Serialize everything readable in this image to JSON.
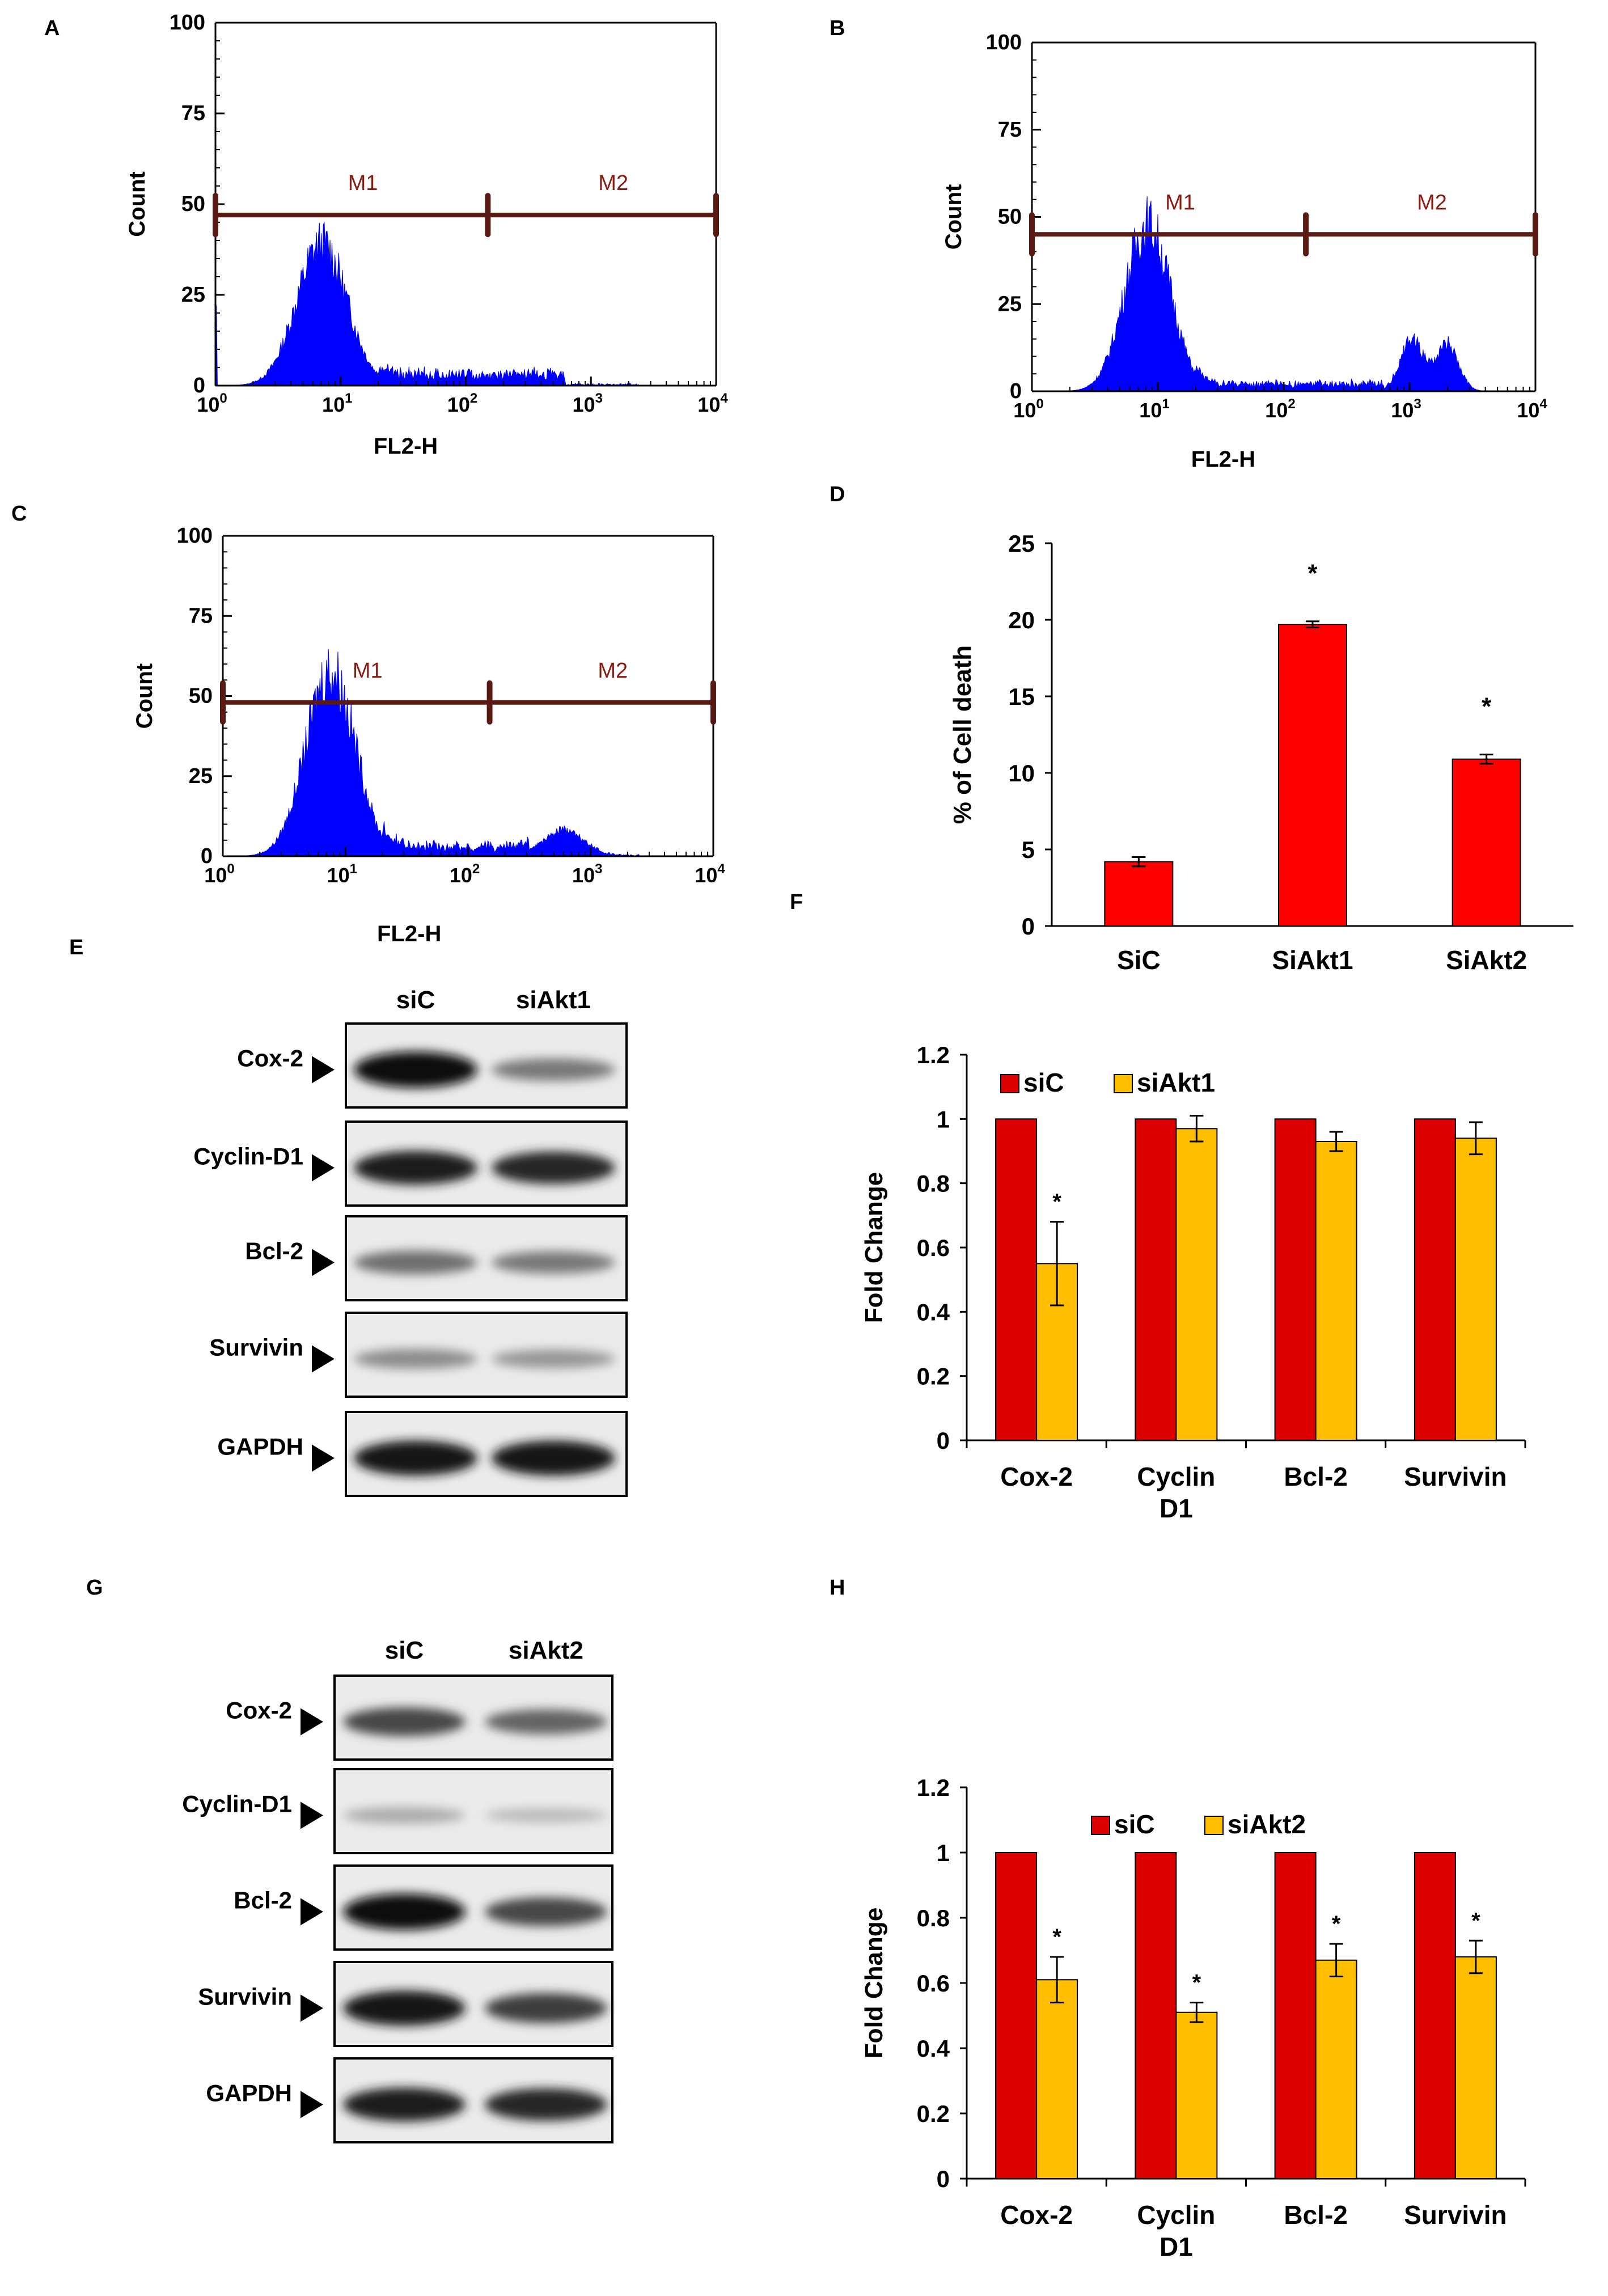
{
  "panels": {
    "A": "A",
    "B": "B",
    "C": "C",
    "D": "D",
    "E": "E",
    "F": "F",
    "G": "G",
    "H": "H"
  },
  "colors": {
    "histogram": "#0000ff",
    "marker": "#5a1a14",
    "siC": "#dd0000",
    "siAkt": "#ffbf00",
    "barD": "#ff0000"
  },
  "chart_data": [
    {
      "id": "A",
      "type": "area",
      "title": "",
      "xlabel": "FL2-H",
      "ylabel": "Count",
      "xscale": "log",
      "xlim": [
        1,
        10000
      ],
      "ylim": [
        0,
        100
      ],
      "yticks": [
        "0",
        "25",
        "50",
        "75",
        "100"
      ],
      "xticks_base": [
        "10",
        "10",
        "10",
        "10",
        "10"
      ],
      "xticks_exp": [
        "0",
        "1",
        "2",
        "3",
        "4"
      ],
      "markers": [
        {
          "label": "M1",
          "from": 1,
          "to": 150
        },
        {
          "label": "M2",
          "from": 150,
          "to": 10000
        }
      ],
      "marker_level": 47,
      "peaks": [
        {
          "log_center": 0.85,
          "height": 39,
          "width": 0.2
        }
      ],
      "tail": {
        "start": 1.3,
        "end": 2.8,
        "level": 3
      },
      "edge_spike": 25
    },
    {
      "id": "B",
      "type": "area",
      "title": "",
      "xlabel": "FL2-H",
      "ylabel": "Count",
      "xscale": "log",
      "xlim": [
        1,
        10000
      ],
      "ylim": [
        0,
        100
      ],
      "yticks": [
        "0",
        "25",
        "50",
        "75",
        "100"
      ],
      "xticks_base": [
        "10",
        "10",
        "10",
        "10",
        "10"
      ],
      "xticks_exp": [
        "0",
        "1",
        "2",
        "3",
        "4"
      ],
      "markers": [
        {
          "label": "M1",
          "from": 1,
          "to": 150
        },
        {
          "label": "M2",
          "from": 150,
          "to": 10000
        }
      ],
      "marker_level": 45,
      "peaks": [
        {
          "log_center": 0.92,
          "height": 48,
          "width": 0.18
        },
        {
          "log_center": 3.02,
          "height": 15,
          "width": 0.09
        },
        {
          "log_center": 3.3,
          "height": 13,
          "width": 0.09
        }
      ],
      "tail": {
        "start": 1.3,
        "end": 2.8,
        "level": 2
      },
      "edge_spike": 0
    },
    {
      "id": "C",
      "type": "area",
      "title": "",
      "xlabel": "FL2-H",
      "ylabel": "Count",
      "xscale": "log",
      "xlim": [
        1,
        10000
      ],
      "ylim": [
        0,
        100
      ],
      "yticks": [
        "0",
        "25",
        "50",
        "75",
        "100"
      ],
      "xticks_base": [
        "10",
        "10",
        "10",
        "10",
        "10"
      ],
      "xticks_exp": [
        "0",
        "1",
        "2",
        "3",
        "4"
      ],
      "markers": [
        {
          "label": "M1",
          "from": 1,
          "to": 150
        },
        {
          "label": "M2",
          "from": 150,
          "to": 10000
        }
      ],
      "marker_level": 48,
      "peaks": [
        {
          "log_center": 0.88,
          "height": 58,
          "width": 0.2
        },
        {
          "log_center": 2.78,
          "height": 8,
          "width": 0.16
        }
      ],
      "tail": {
        "start": 1.3,
        "end": 2.5,
        "level": 3
      },
      "edge_spike": 0
    },
    {
      "id": "D",
      "type": "bar",
      "title": "",
      "xlabel": "",
      "ylabel": "% of Cell death",
      "categories": [
        "SiC",
        "SiAkt1",
        "SiAkt2"
      ],
      "values": [
        4.2,
        19.7,
        10.9
      ],
      "errors": [
        0.3,
        0.2,
        0.3
      ],
      "significance": [
        "",
        "*",
        "*"
      ],
      "ylim": [
        0,
        25
      ],
      "yticks": [
        "0",
        "5",
        "10",
        "15",
        "20",
        "25"
      ]
    },
    {
      "id": "F",
      "type": "bar",
      "title": "",
      "xlabel": "",
      "ylabel": "Fold Change",
      "categories": [
        "Cox-2",
        "Cyclin\nD1",
        "Bcl-2",
        "Survivin"
      ],
      "category_lines": [
        [
          "Cox-2"
        ],
        [
          "Cyclin",
          "D1"
        ],
        [
          "Bcl-2"
        ],
        [
          "Survivin"
        ]
      ],
      "series": [
        {
          "name": "siC",
          "values": [
            1,
            1,
            1,
            1
          ],
          "errors": [
            0,
            0,
            0,
            0
          ]
        },
        {
          "name": "siAkt1",
          "values": [
            0.55,
            0.97,
            0.93,
            0.94
          ],
          "errors": [
            0.13,
            0.04,
            0.03,
            0.05
          ]
        }
      ],
      "significance": [
        "*",
        "",
        "",
        ""
      ],
      "ylim": [
        0,
        1.2
      ],
      "yticks": [
        "0",
        "0.2",
        "0.4",
        "0.6",
        "0.8",
        "1",
        "1.2"
      ],
      "legend": "top-left"
    },
    {
      "id": "H",
      "type": "bar",
      "title": "",
      "xlabel": "",
      "ylabel": "Fold Change",
      "categories": [
        "Cox-2",
        "Cyclin\nD1",
        "Bcl-2",
        "Survivin"
      ],
      "category_lines": [
        [
          "Cox-2"
        ],
        [
          "Cyclin",
          "D1"
        ],
        [
          "Bcl-2"
        ],
        [
          "Survivin"
        ]
      ],
      "series": [
        {
          "name": "siC",
          "values": [
            1,
            1,
            1,
            1
          ],
          "errors": [
            0,
            0,
            0,
            0
          ]
        },
        {
          "name": "siAkt2",
          "values": [
            0.61,
            0.51,
            0.67,
            0.68
          ],
          "errors": [
            0.07,
            0.03,
            0.05,
            0.05
          ]
        }
      ],
      "significance": [
        "*",
        "*",
        "*",
        "*"
      ],
      "ylim": [
        0,
        1.2
      ],
      "yticks": [
        "0",
        "0.2",
        "0.4",
        "0.6",
        "0.8",
        "1",
        "1.2"
      ],
      "legend": "top-center"
    }
  ],
  "blots": {
    "E": {
      "lanes": [
        "siC",
        "siAkt1"
      ],
      "rows": [
        {
          "label": "Cox-2",
          "intensity": [
            1.0,
            0.45
          ]
        },
        {
          "label": "Cyclin-D1",
          "intensity": [
            0.9,
            0.85
          ]
        },
        {
          "label": "Bcl-2",
          "intensity": [
            0.5,
            0.45
          ]
        },
        {
          "label": "Survivin",
          "intensity": [
            0.35,
            0.3
          ]
        },
        {
          "label": "GAPDH",
          "intensity": [
            0.95,
            0.95
          ]
        }
      ]
    },
    "G": {
      "lanes": [
        "siC",
        "siAkt2"
      ],
      "rows": [
        {
          "label": "Cox-2",
          "intensity": [
            0.7,
            0.55
          ]
        },
        {
          "label": "Cyclin-D1",
          "intensity": [
            0.2,
            0.12
          ]
        },
        {
          "label": "Bcl-2",
          "intensity": [
            1.0,
            0.7
          ]
        },
        {
          "label": "Survivin",
          "intensity": [
            0.95,
            0.75
          ]
        },
        {
          "label": "GAPDH",
          "intensity": [
            0.9,
            0.85
          ]
        }
      ]
    }
  }
}
